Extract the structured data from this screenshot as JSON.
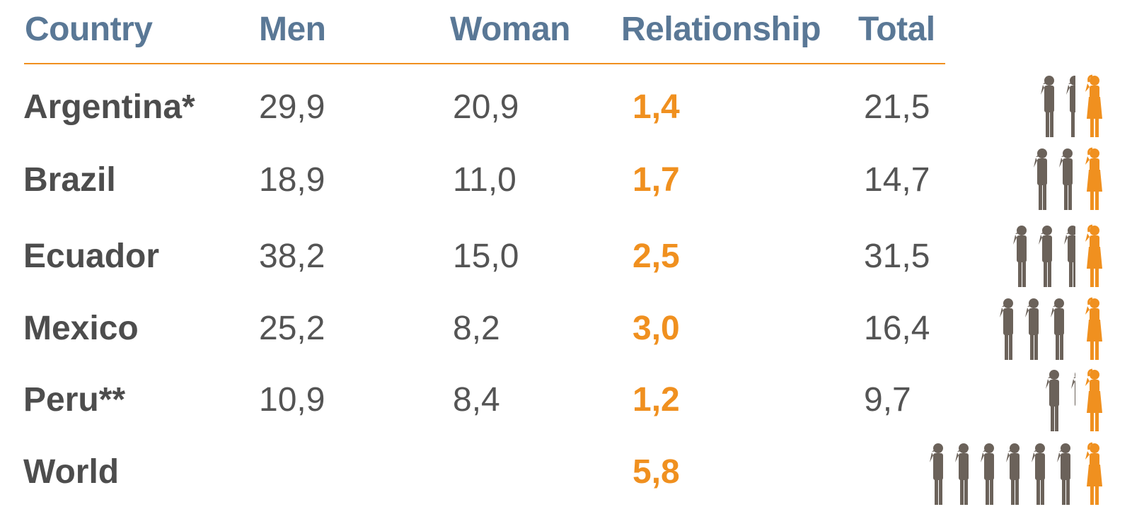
{
  "colors": {
    "header": "#5a7896",
    "accent": "#f0901f",
    "text": "#545454",
    "man": "#6b625a",
    "woman": "#f0901f"
  },
  "icons": {
    "man": "man-figure-icon",
    "woman": "woman-figure-icon"
  },
  "chart_data": {
    "type": "table",
    "columns": [
      "Country",
      "Men",
      "Woman",
      "Relationship",
      "Total"
    ],
    "rows": [
      {
        "country": "Argentina*",
        "men": "29,9",
        "women": "20,9",
        "relationship": "1,4",
        "total": "21,5",
        "ratio": 1.4
      },
      {
        "country": "Brazil",
        "men": "18,9",
        "women": "11,0",
        "relationship": "1,7",
        "total": "14,7",
        "ratio": 1.7
      },
      {
        "country": "Ecuador",
        "men": "38,2",
        "women": "15,0",
        "relationship": "2,5",
        "total": "31,5",
        "ratio": 2.5
      },
      {
        "country": "Mexico",
        "men": "25,2",
        "women": "8,2",
        "relationship": "3,0",
        "total": "16,4",
        "ratio": 3.0
      },
      {
        "country": "Peru**",
        "men": "10,9",
        "women": "8,4",
        "relationship": "1,2",
        "total": "9,7",
        "ratio": 1.2
      },
      {
        "country": "World",
        "men": "",
        "women": "",
        "relationship": "5,8",
        "total": "",
        "ratio": 5.8
      }
    ]
  }
}
